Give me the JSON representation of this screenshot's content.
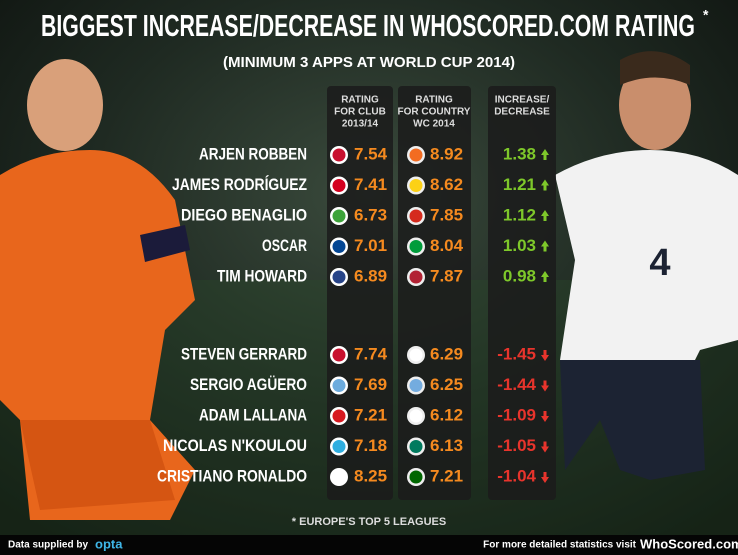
{
  "header": {
    "title": "BIGGEST INCREASE/DECREASE IN WHOSCORED.COM RATING",
    "title_mark": "*",
    "subtitle": "(MINIMUM 3 APPS AT WORLD CUP 2014)"
  },
  "table": {
    "columns": [
      [
        "RATING",
        "FOR CLUB",
        "2013/14"
      ],
      [
        "RATING",
        "FOR COUNTRY",
        "WC 2014"
      ],
      [
        "INCREASE/",
        "DECREASE"
      ]
    ],
    "rows": [
      [
        "ARJEN ROBBEN",
        7.54,
        8.92,
        1.38
      ],
      [
        "JAMES RODRÍGUEZ",
        7.41,
        8.62,
        1.21
      ],
      [
        "DIEGO BENAGLIO",
        6.73,
        7.85,
        1.12
      ],
      [
        "OSCAR",
        7.01,
        8.04,
        1.03
      ],
      [
        "TIM HOWARD",
        6.89,
        7.87,
        0.98
      ],
      [
        "STEVEN GERRARD",
        7.74,
        6.29,
        -1.45
      ],
      [
        "SERGIO AGÜERO",
        7.69,
        6.25,
        -1.44
      ],
      [
        "ADAM LALLANA",
        7.21,
        6.12,
        -1.09
      ],
      [
        "NICOLAS N'KOULOU",
        7.18,
        6.13,
        -1.05
      ],
      [
        "CRISTIANO RONALDO",
        8.25,
        7.21,
        -1.04
      ]
    ]
  },
  "footnote": "* EUROPE'S TOP 5 LEAGUES",
  "footer": {
    "left_text": "Data supplied by",
    "left_brand": "opta",
    "right_text": "For more detailed statistics visit",
    "right_brand": "WhoScored.com"
  }
}
